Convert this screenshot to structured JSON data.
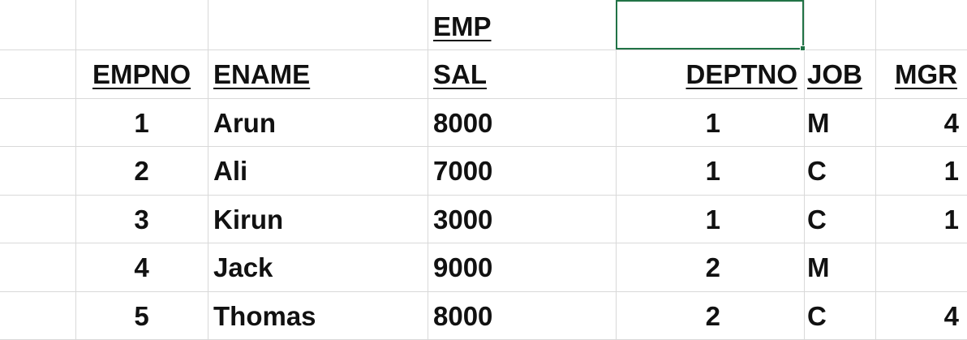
{
  "table_title": "EMP",
  "columns": [
    "EMPNO",
    "ENAME",
    "SAL",
    "DEPTNO",
    "JOB",
    "MGR"
  ],
  "rows": [
    [
      "1",
      "Arun",
      "8000",
      "1",
      "M",
      "4"
    ],
    [
      "2",
      "Ali",
      "7000",
      "1",
      "C",
      "1"
    ],
    [
      "3",
      "Kirun",
      "3000",
      "1",
      "C",
      "1"
    ],
    [
      "4",
      "Jack",
      "9000",
      "2",
      "M",
      ""
    ],
    [
      "5",
      "Thomas",
      "8000",
      "2",
      "C",
      "4"
    ]
  ],
  "selection_color": "#217346",
  "gridline_color": "#d9d9d9"
}
